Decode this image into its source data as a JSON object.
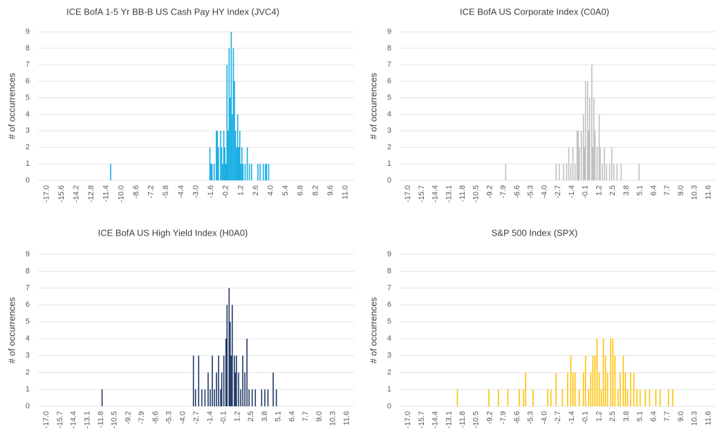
{
  "chart_data": [
    {
      "type": "bar",
      "title": "ICE BofA 1-5 Yr BB-B US Cash Pay HY Index (JVC4)",
      "ylabel": "# of occurrences",
      "color": "#1aaee3",
      "grid": true,
      "xlim": [
        -17.8,
        11.8
      ],
      "ylim": [
        0,
        9
      ],
      "yticks": [
        0,
        1,
        2,
        3,
        4,
        5,
        6,
        7,
        8,
        9
      ],
      "xticks": [
        {
          "value": -17.0,
          "label": "-17.0"
        },
        -15.6,
        -14.2,
        -12.8,
        -11.4,
        {
          "value": -10.0,
          "label": "-10.0"
        },
        -8.6,
        -7.2,
        -5.8,
        -4.4,
        {
          "value": -3.0,
          "label": "-3.0"
        },
        -1.6,
        -0.2,
        1.2,
        2.6,
        {
          "value": 4.0,
          "label": "4.0"
        },
        5.4,
        6.8,
        8.2,
        9.6,
        {
          "value": 11.0,
          "label": "11.0"
        }
      ],
      "x": [
        -11.0,
        -1.7,
        -1.6,
        -1.5,
        -1.3,
        -1.1,
        -1.0,
        -0.9,
        -0.7,
        -0.6,
        -0.5,
        -0.4,
        -0.3,
        -0.2,
        -0.1,
        0.0,
        0.1,
        0.2,
        0.3,
        0.4,
        0.5,
        0.6,
        0.7,
        0.8,
        0.9,
        1.0,
        1.1,
        1.2,
        1.3,
        1.4,
        1.6,
        1.8,
        2.0,
        2.2,
        2.8,
        3.0,
        3.3,
        3.5,
        3.6,
        3.8
      ],
      "values": [
        1,
        2,
        1,
        1,
        1,
        3,
        3,
        2,
        3,
        2,
        1,
        3,
        2,
        1,
        7,
        3,
        8,
        5,
        9,
        4,
        8,
        6,
        3,
        2,
        4,
        2,
        3,
        1,
        2,
        1,
        1,
        2,
        1,
        1,
        1,
        1,
        1,
        1,
        1,
        1
      ]
    },
    {
      "type": "bar",
      "title": "ICE BofA US Corporate Index (C0A0)",
      "ylabel": "# of occurrences",
      "color": "#bfbfbf",
      "grid": true,
      "xlim": [
        -17.8,
        12.3
      ],
      "ylim": [
        0,
        9
      ],
      "yticks": [
        0,
        1,
        2,
        3,
        4,
        5,
        6,
        7,
        8,
        9
      ],
      "xticks": [
        {
          "value": -17.0,
          "label": "-17.0"
        },
        -15.7,
        -14.4,
        -13.1,
        -11.8,
        -10.5,
        -9.2,
        -7.9,
        -6.6,
        -5.3,
        {
          "value": -4.0,
          "label": "-4.0"
        },
        -2.7,
        -1.4,
        -0.1,
        1.2,
        2.5,
        3.8,
        5.1,
        6.4,
        7.7,
        {
          "value": 9.0,
          "label": "9.0"
        },
        10.3,
        11.6
      ],
      "x": [
        -7.7,
        -2.9,
        -2.6,
        -2.2,
        -1.9,
        -1.7,
        -1.5,
        -1.3,
        -1.1,
        -0.9,
        -0.8,
        -0.7,
        -0.5,
        -0.3,
        -0.2,
        -0.1,
        0.1,
        0.2,
        0.3,
        0.5,
        0.6,
        0.7,
        0.8,
        1.0,
        1.2,
        1.3,
        1.5,
        1.7,
        1.9,
        2.2,
        2.4,
        2.6,
        2.9,
        3.3,
        5.0
      ],
      "values": [
        1,
        1,
        1,
        1,
        1,
        2,
        1,
        2,
        1,
        3,
        3,
        2,
        3,
        4,
        2,
        6,
        6,
        3,
        5,
        7,
        2,
        5,
        3,
        2,
        4,
        2,
        1,
        2,
        1,
        1,
        2,
        1,
        1,
        1,
        1
      ]
    },
    {
      "type": "bar",
      "title": "ICE BofA US High Yield Index (H0A0)",
      "ylabel": "# of occurrences",
      "color": "#1f3864",
      "grid": true,
      "xlim": [
        -17.8,
        12.3
      ],
      "ylim": [
        0,
        9
      ],
      "yticks": [
        0,
        1,
        2,
        3,
        4,
        5,
        6,
        7,
        8,
        9
      ],
      "xticks": [
        {
          "value": -17.0,
          "label": "-17.0"
        },
        -15.7,
        -14.4,
        -13.1,
        -11.8,
        -10.5,
        -9.2,
        -7.9,
        -6.6,
        -5.3,
        {
          "value": -4.0,
          "label": "-4.0"
        },
        -2.7,
        -1.4,
        -0.1,
        1.2,
        2.5,
        3.8,
        5.1,
        6.4,
        7.7,
        {
          "value": 9.0,
          "label": "9.0"
        },
        10.3,
        11.6
      ],
      "x": [
        -11.7,
        -3.0,
        -2.8,
        -2.5,
        -2.2,
        -1.9,
        -1.6,
        -1.4,
        -1.2,
        -1.0,
        -0.8,
        -0.6,
        -0.4,
        -0.3,
        -0.1,
        0.1,
        0.2,
        0.4,
        0.5,
        0.6,
        0.7,
        0.9,
        1.0,
        1.1,
        1.3,
        1.5,
        1.7,
        1.9,
        2.1,
        2.3,
        2.6,
        2.9,
        3.5,
        3.8,
        4.1,
        4.6,
        4.9
      ],
      "values": [
        1,
        3,
        1,
        3,
        1,
        1,
        2,
        1,
        3,
        1,
        2,
        3,
        1,
        2,
        3,
        4,
        6,
        7,
        5,
        3,
        6,
        3,
        2,
        3,
        2,
        1,
        3,
        2,
        4,
        1,
        1,
        1,
        1,
        1,
        1,
        2,
        1
      ]
    },
    {
      "type": "bar",
      "title": "S&P 500 Index (SPX)",
      "ylabel": "# of occurrences",
      "color": "#ffc000",
      "grid": true,
      "xlim": [
        -17.8,
        12.3
      ],
      "ylim": [
        0,
        9
      ],
      "yticks": [
        0,
        1,
        2,
        3,
        4,
        5,
        6,
        7,
        8,
        9
      ],
      "xticks": [
        {
          "value": -17.0,
          "label": "-17.0"
        },
        -15.7,
        -14.4,
        -13.1,
        -11.8,
        -10.5,
        -9.2,
        -7.9,
        -6.6,
        -5.3,
        {
          "value": -4.0,
          "label": "-4.0"
        },
        -2.7,
        -1.4,
        -0.1,
        1.2,
        2.5,
        3.8,
        5.1,
        6.4,
        7.7,
        {
          "value": 9.0,
          "label": "9.0"
        },
        10.3,
        11.6
      ],
      "x": [
        -12.3,
        -9.3,
        -8.4,
        -7.5,
        -6.4,
        -6.0,
        -5.8,
        -5.1,
        -3.7,
        -3.4,
        -2.9,
        -2.3,
        -1.8,
        -1.5,
        -1.3,
        -1.1,
        -0.7,
        -0.3,
        -0.1,
        0.2,
        0.4,
        0.6,
        0.8,
        1.0,
        1.2,
        1.4,
        1.6,
        1.8,
        2.0,
        2.3,
        2.5,
        2.7,
        3.0,
        3.2,
        3.5,
        3.7,
        3.9,
        4.2,
        4.5,
        4.8,
        5.1,
        5.6,
        6.0,
        6.6,
        7.0,
        7.8,
        8.2
      ],
      "values": [
        1,
        1,
        1,
        1,
        1,
        1,
        2,
        1,
        1,
        1,
        2,
        1,
        2,
        3,
        2,
        2,
        1,
        2,
        3,
        1,
        2,
        3,
        3,
        4,
        2,
        1,
        4,
        3,
        2,
        4,
        4,
        3,
        1,
        2,
        3,
        2,
        1,
        2,
        2,
        1,
        1,
        1,
        1,
        1,
        1,
        1,
        1
      ]
    }
  ]
}
